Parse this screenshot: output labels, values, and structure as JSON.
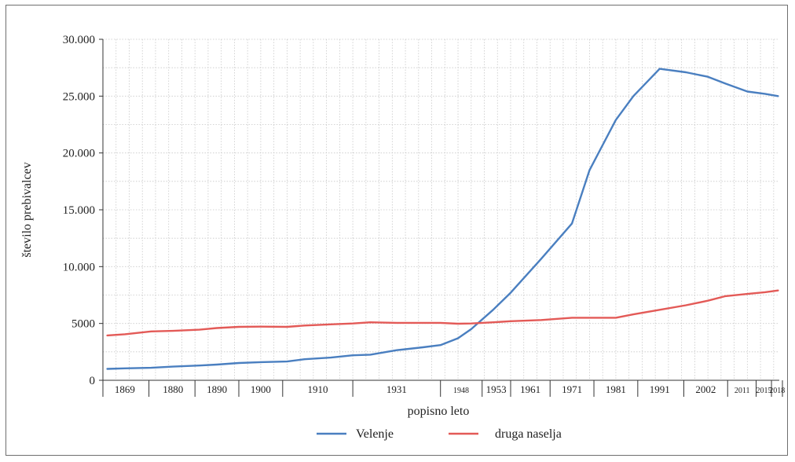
{
  "chart_data": {
    "type": "line",
    "xlabel": "popisno leto",
    "ylabel": "število prebivalcev",
    "ylim": [
      0,
      30000
    ],
    "yticks": [
      {
        "value": 0,
        "label": "0"
      },
      {
        "value": 5000,
        "label": "5000"
      },
      {
        "value": 10000,
        "label": "10.000"
      },
      {
        "value": 15000,
        "label": "15.000"
      },
      {
        "value": 20000,
        "label": "20.000"
      },
      {
        "value": 25000,
        "label": "25.000"
      },
      {
        "value": 30000,
        "label": "30.000"
      }
    ],
    "xlim": [
      1864,
      2019
    ],
    "xticks": [
      {
        "value": 1869,
        "label": "1869"
      },
      {
        "value": 1880,
        "label": "1880"
      },
      {
        "value": 1890,
        "label": "1890"
      },
      {
        "value": 1900,
        "label": "1900"
      },
      {
        "value": 1910,
        "label": "1910"
      },
      {
        "value": 1931,
        "label": "1931"
      },
      {
        "value": 1948,
        "label": "1948"
      },
      {
        "value": 1953,
        "label": "1953"
      },
      {
        "value": 1961,
        "label": "1961"
      },
      {
        "value": 1971,
        "label": "1971"
      },
      {
        "value": 1981,
        "label": "1981"
      },
      {
        "value": 1991,
        "label": "1991"
      },
      {
        "value": 2002,
        "label": "2002"
      },
      {
        "value": 2011,
        "label": "2011"
      },
      {
        "value": 2015,
        "label": "2015"
      },
      {
        "value": 2018,
        "label": "2018"
      }
    ],
    "grid": true,
    "legend_position": "bottom",
    "series": [
      {
        "name": "Velenje",
        "color": "#4a7fc0",
        "points": [
          [
            1865,
            1000
          ],
          [
            1869,
            1050
          ],
          [
            1875,
            1100
          ],
          [
            1880,
            1200
          ],
          [
            1886,
            1300
          ],
          [
            1890,
            1380
          ],
          [
            1895,
            1520
          ],
          [
            1900,
            1600
          ],
          [
            1906,
            1650
          ],
          [
            1910,
            1850
          ],
          [
            1916,
            2000
          ],
          [
            1921,
            2200
          ],
          [
            1925,
            2250
          ],
          [
            1931,
            2650
          ],
          [
            1937,
            2900
          ],
          [
            1941,
            3100
          ],
          [
            1945,
            3700
          ],
          [
            1948,
            4500
          ],
          [
            1953,
            6200
          ],
          [
            1957,
            7700
          ],
          [
            1964,
            10700
          ],
          [
            1971,
            13800
          ],
          [
            1975,
            18500
          ],
          [
            1981,
            22900
          ],
          [
            1985,
            25000
          ],
          [
            1991,
            27400
          ],
          [
            1997,
            27100
          ],
          [
            2002,
            26700
          ],
          [
            2006,
            26100
          ],
          [
            2011,
            25400
          ],
          [
            2015,
            25200
          ],
          [
            2018,
            25000
          ]
        ]
      },
      {
        "name": "druga naselja",
        "color": "#e35a57",
        "points": [
          [
            1865,
            3950
          ],
          [
            1869,
            4050
          ],
          [
            1875,
            4300
          ],
          [
            1880,
            4350
          ],
          [
            1886,
            4450
          ],
          [
            1890,
            4600
          ],
          [
            1895,
            4700
          ],
          [
            1900,
            4720
          ],
          [
            1906,
            4700
          ],
          [
            1910,
            4820
          ],
          [
            1916,
            4920
          ],
          [
            1921,
            5000
          ],
          [
            1925,
            5100
          ],
          [
            1931,
            5050
          ],
          [
            1937,
            5050
          ],
          [
            1941,
            5050
          ],
          [
            1945,
            4980
          ],
          [
            1948,
            5000
          ],
          [
            1953,
            5100
          ],
          [
            1957,
            5200
          ],
          [
            1964,
            5300
          ],
          [
            1971,
            5500
          ],
          [
            1975,
            5500
          ],
          [
            1981,
            5500
          ],
          [
            1985,
            5800
          ],
          [
            1991,
            6200
          ],
          [
            1997,
            6600
          ],
          [
            2002,
            7000
          ],
          [
            2006,
            7400
          ],
          [
            2011,
            7600
          ],
          [
            2015,
            7750
          ],
          [
            2018,
            7900
          ]
        ]
      }
    ]
  }
}
